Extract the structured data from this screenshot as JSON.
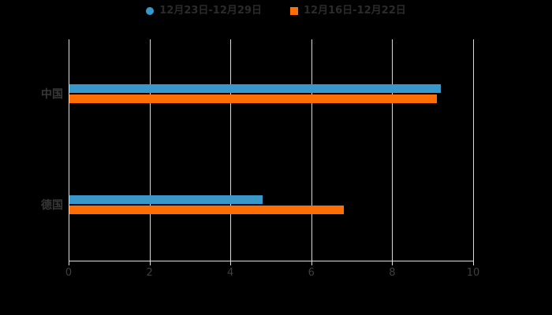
{
  "background": "#000000",
  "legend": {
    "items": [
      {
        "label": "12月23日-12月29日",
        "color": "#3898cc",
        "marker": "circle"
      },
      {
        "label": "12月16日-12月22日",
        "color": "#ff6e05",
        "marker": "square"
      }
    ],
    "text_color": "#2b2b2b"
  },
  "chart_data": {
    "type": "bar",
    "orientation": "horizontal",
    "title": "",
    "xlabel": "",
    "ylabel": "",
    "categories": [
      "中国",
      "德国"
    ],
    "series": [
      {
        "name": "12月23日-12月29日",
        "color": "#3898cc",
        "values": [
          9.2,
          4.8
        ]
      },
      {
        "name": "12月16日-12月22日",
        "color": "#ff6e05",
        "values": [
          9.1,
          6.8
        ]
      }
    ],
    "xlim": [
      0,
      10
    ],
    "x_ticks": [
      0,
      2,
      4,
      6,
      8,
      10
    ],
    "grid": true,
    "legend_position": "top"
  },
  "axis": {
    "tick_labels": [
      "0",
      "2",
      "4",
      "6",
      "8",
      "10"
    ],
    "axis_line_color": "#e0e0e0",
    "gridline_color": "#dadada",
    "tick_label_color": "#3f3f3f",
    "category_label_color": "#383838"
  }
}
